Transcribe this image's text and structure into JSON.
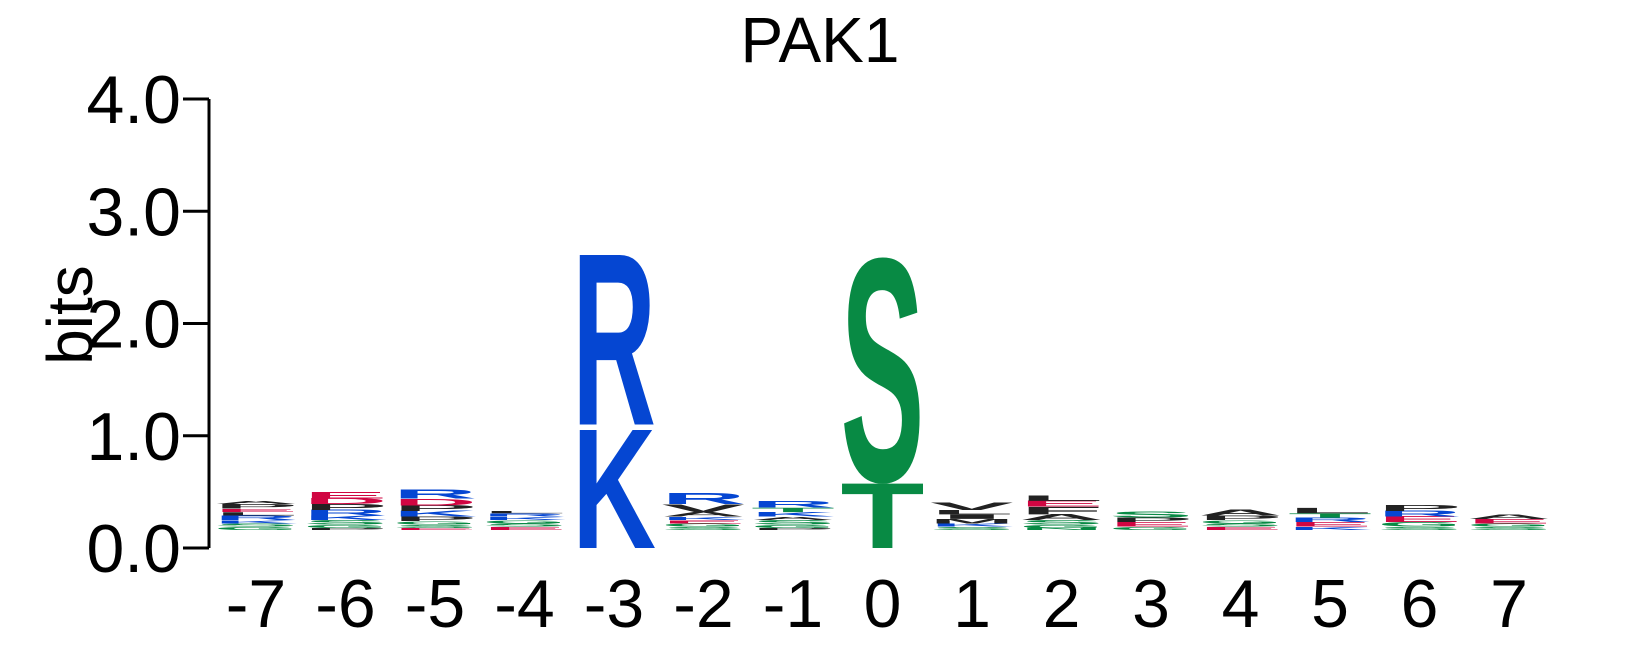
{
  "chart_data": {
    "type": "sequence-logo",
    "title": "PAK1",
    "ylabel": "bits",
    "ylim": [
      0,
      4
    ],
    "yticks": [
      "0.0",
      "1.0",
      "2.0",
      "3.0",
      "4.0"
    ],
    "positions": [
      "-7",
      "-6",
      "-5",
      "-4",
      "-3",
      "-2",
      "-1",
      "0",
      "1",
      "2",
      "3",
      "4",
      "5",
      "6",
      "7"
    ],
    "colors": {
      "basic": "#0546D2",
      "hydroxyl": "#088A44",
      "acidic": "#D00642",
      "hydrophobic": "#222222",
      "polar": "#D00642"
    },
    "columns": [
      {
        "position": "-7",
        "stack": [
          [
            "G",
            0.03,
            "#088A44"
          ],
          [
            "S",
            0.03,
            "#088A44"
          ],
          [
            "K",
            0.03,
            "#0546D2"
          ],
          [
            "R",
            0.04,
            "#0546D2"
          ],
          [
            "L",
            0.03,
            "#222222"
          ],
          [
            "E",
            0.03,
            "#D00642"
          ],
          [
            "P",
            0.04,
            "#222222"
          ],
          [
            "A",
            0.03,
            "#222222"
          ]
        ]
      },
      {
        "position": "-6",
        "stack": [
          [
            "P",
            0.02,
            "#222222"
          ],
          [
            "G",
            0.03,
            "#088A44"
          ],
          [
            "S",
            0.04,
            "#088A44"
          ],
          [
            "K",
            0.04,
            "#0546D2"
          ],
          [
            "R",
            0.05,
            "#0546D2"
          ],
          [
            "P",
            0.05,
            "#222222"
          ],
          [
            "D",
            0.05,
            "#D00642"
          ],
          [
            "E",
            0.06,
            "#D00642"
          ]
        ]
      },
      {
        "position": "-5",
        "stack": [
          [
            "E",
            0.02,
            "#D00642"
          ],
          [
            "S",
            0.03,
            "#088A44"
          ],
          [
            "G",
            0.03,
            "#088A44"
          ],
          [
            "P",
            0.04,
            "#222222"
          ],
          [
            "K",
            0.05,
            "#0546D2"
          ],
          [
            "P",
            0.05,
            "#222222"
          ],
          [
            "D",
            0.06,
            "#D00642"
          ],
          [
            "R",
            0.08,
            "#0546D2"
          ]
        ]
      },
      {
        "position": "-4",
        "stack": [
          [
            "E",
            0.03,
            "#D00642"
          ],
          [
            "S",
            0.03,
            "#088A44"
          ],
          [
            "G",
            0.03,
            "#088A44"
          ],
          [
            "K",
            0.03,
            "#0546D2"
          ],
          [
            "R",
            0.03,
            "#0546D2"
          ],
          [
            "L",
            0.02,
            "#222222"
          ]
        ]
      },
      {
        "position": "-3",
        "stack": [
          [
            "K",
            1.1,
            "#0546D2"
          ],
          [
            "R",
            1.58,
            "#0546D2"
          ]
        ]
      },
      {
        "position": "-2",
        "stack": [
          [
            "S",
            0.03,
            "#088A44"
          ],
          [
            "G",
            0.03,
            "#088A44"
          ],
          [
            "E",
            0.03,
            "#D00642"
          ],
          [
            "K",
            0.03,
            "#0546D2"
          ],
          [
            "A",
            0.04,
            "#222222"
          ],
          [
            "V",
            0.07,
            "#222222"
          ],
          [
            "R",
            0.1,
            "#0546D2"
          ]
        ]
      },
      {
        "position": "-1",
        "stack": [
          [
            "P",
            0.02,
            "#222222"
          ],
          [
            "G",
            0.03,
            "#088A44"
          ],
          [
            "S",
            0.04,
            "#088A44"
          ],
          [
            "A",
            0.03,
            "#222222"
          ],
          [
            "K",
            0.04,
            "#0546D2"
          ],
          [
            "T",
            0.04,
            "#088A44"
          ],
          [
            "R",
            0.06,
            "#0546D2"
          ]
        ]
      },
      {
        "position": "0",
        "stack": [
          [
            "T",
            0.6,
            "#088A44"
          ],
          [
            "S",
            2.05,
            "#088A44"
          ]
        ]
      },
      {
        "position": "1",
        "stack": [
          [
            "S",
            0.03,
            "#088A44"
          ],
          [
            "K",
            0.03,
            "#0546D2"
          ],
          [
            "M",
            0.04,
            "#222222"
          ],
          [
            "I",
            0.04,
            "#222222"
          ],
          [
            "L",
            0.04,
            "#222222"
          ],
          [
            "V",
            0.07,
            "#222222"
          ]
        ]
      },
      {
        "position": "2",
        "stack": [
          [
            "N",
            0.02,
            "#088A44"
          ],
          [
            "G",
            0.03,
            "#088A44"
          ],
          [
            "S",
            0.04,
            "#088A44"
          ],
          [
            "A",
            0.05,
            "#222222"
          ],
          [
            "F",
            0.07,
            "#222222"
          ],
          [
            "E",
            0.05,
            "#D00642"
          ],
          [
            "L",
            0.05,
            "#222222"
          ]
        ]
      },
      {
        "position": "3",
        "stack": [
          [
            "G",
            0.03,
            "#088A44"
          ],
          [
            "E",
            0.04,
            "#D00642"
          ],
          [
            "P",
            0.04,
            "#222222"
          ],
          [
            "S",
            0.05,
            "#088A44"
          ]
        ]
      },
      {
        "position": "4",
        "stack": [
          [
            "E",
            0.03,
            "#D00642"
          ],
          [
            "S",
            0.03,
            "#088A44"
          ],
          [
            "G",
            0.03,
            "#088A44"
          ],
          [
            "P",
            0.04,
            "#222222"
          ],
          [
            "A",
            0.05,
            "#222222"
          ]
        ]
      },
      {
        "position": "5",
        "stack": [
          [
            "K",
            0.03,
            "#0546D2"
          ],
          [
            "E",
            0.04,
            "#D00642"
          ],
          [
            "R",
            0.04,
            "#0546D2"
          ],
          [
            "T",
            0.04,
            "#088A44"
          ],
          [
            "L",
            0.05,
            "#222222"
          ]
        ]
      },
      {
        "position": "6",
        "stack": [
          [
            "S",
            0.03,
            "#088A44"
          ],
          [
            "G",
            0.04,
            "#088A44"
          ],
          [
            "E",
            0.05,
            "#D00642"
          ],
          [
            "R",
            0.05,
            "#0546D2"
          ],
          [
            "P",
            0.05,
            "#222222"
          ]
        ]
      },
      {
        "position": "7",
        "stack": [
          [
            "S",
            0.03,
            "#088A44"
          ],
          [
            "G",
            0.03,
            "#088A44"
          ],
          [
            "E",
            0.04,
            "#D00642"
          ],
          [
            "A",
            0.04,
            "#222222"
          ]
        ]
      }
    ]
  }
}
